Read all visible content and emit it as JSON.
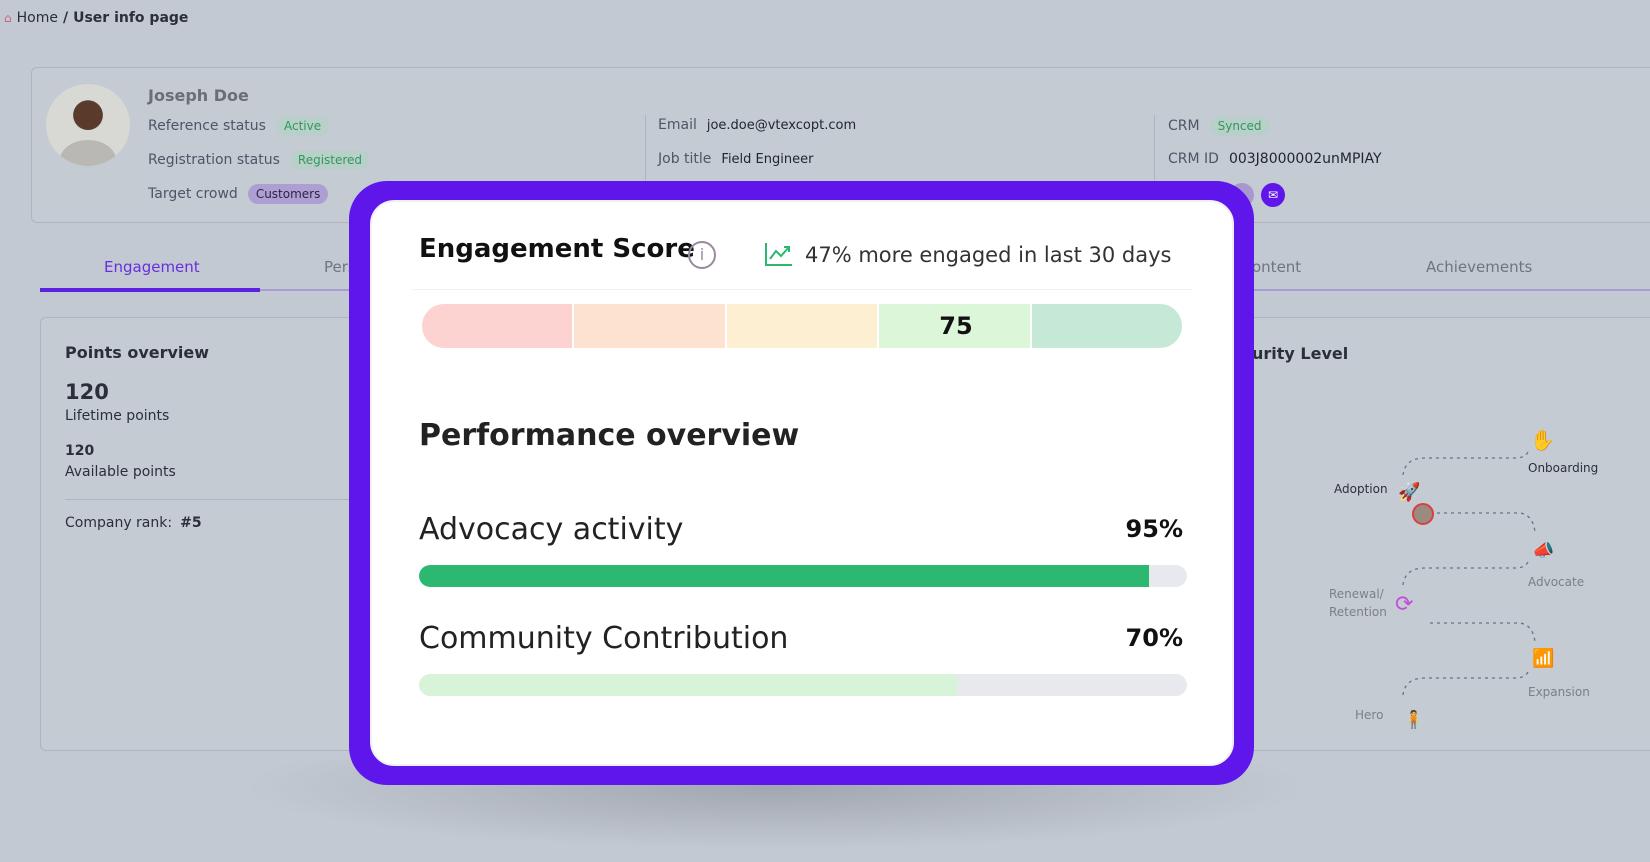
{
  "breadcrumb": {
    "home": "Home",
    "separator": "/",
    "current": "User info page"
  },
  "profile": {
    "name": "Joseph Doe",
    "reference_status_label": "Reference status",
    "reference_status": "Active",
    "registration_status_label": "Registration status",
    "registration_status": "Registered",
    "target_crowd_label": "Target crowd",
    "target_crowd": "Customers",
    "email_label": "Email",
    "email": "joe.doe@vtexcopt.com",
    "job_title_label": "Job title",
    "job_title": "Field Engineer",
    "crm_label": "CRM",
    "crm_status": "Synced",
    "crm_id_label": "CRM ID",
    "crm_id": "003J8000002unMPIAY"
  },
  "tabs": [
    {
      "label": "Engagement",
      "active": true
    },
    {
      "label": "Pers"
    },
    {
      "label": "ontent"
    },
    {
      "label": "Achievements"
    }
  ],
  "points": {
    "title": "Points overview",
    "lifetime": "120",
    "lifetime_label": "Lifetime points",
    "available": "120",
    "available_label": "Available points",
    "rank_label": "Company rank:",
    "rank": "#5"
  },
  "maturity": {
    "title": "urity Level",
    "stages": [
      "Onboarding",
      "Adoption",
      "Advocate",
      "Renewal/",
      "Retention",
      "Expansion",
      "Hero"
    ]
  },
  "engagement": {
    "title": "Engagement Score",
    "trend": "47% more engaged in last 30 days",
    "score": "75",
    "score_value": 75,
    "segment_colors": [
      "#fdd3d1",
      "#fde3cf",
      "#fdefd1",
      "#dcf6d9",
      "#c6e9d7"
    ]
  },
  "performance": {
    "title": "Performance overview",
    "items": [
      {
        "label": "Advocacy activity",
        "value_text": "95%",
        "value": 95,
        "color": "#2db872"
      },
      {
        "label": "Community Contribution",
        "value_text": "70%",
        "value": 70,
        "color": "#d8f4d8"
      }
    ]
  },
  "colors": {
    "accent": "#5f16eb"
  }
}
